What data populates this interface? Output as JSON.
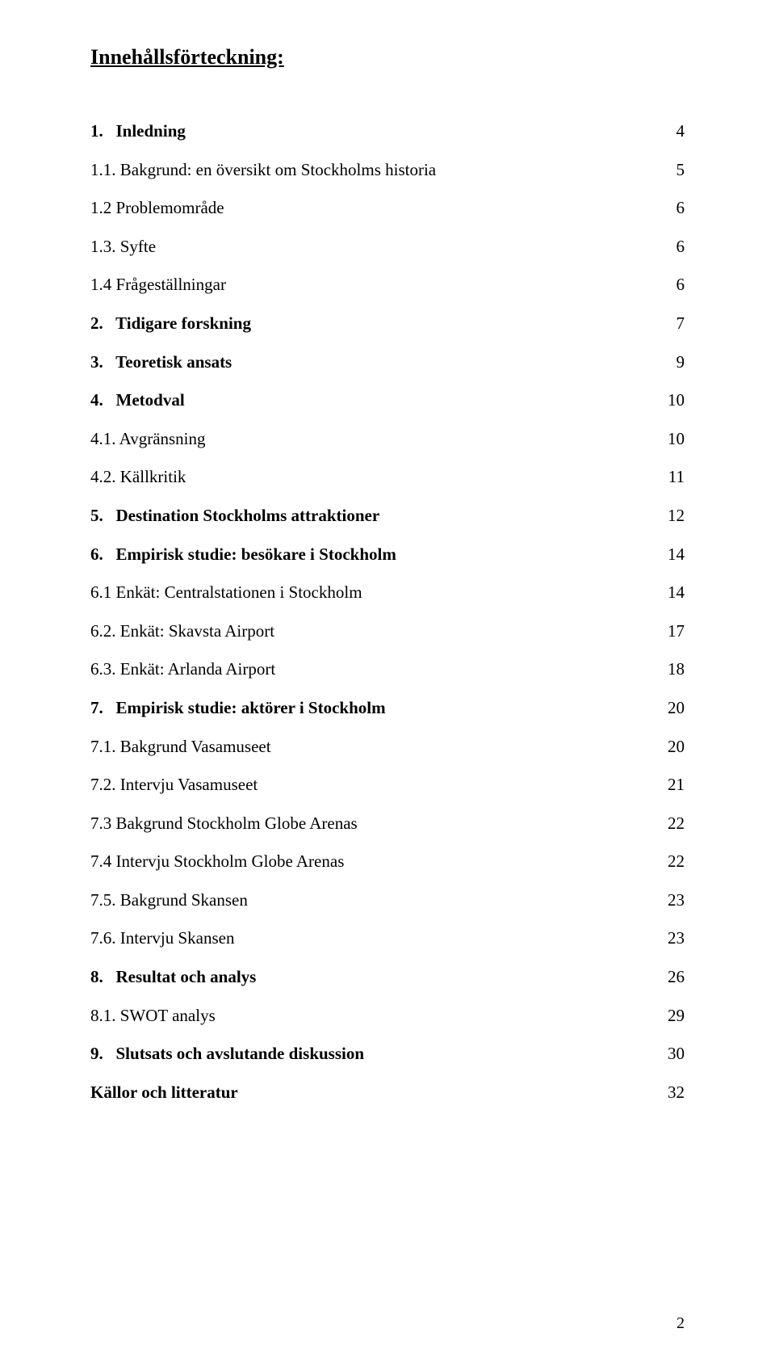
{
  "title": "Innehållsförteckning:",
  "entries": [
    {
      "label": "1.   Inledning",
      "page": "4",
      "bold": true
    },
    {
      "label": "1.1. Bakgrund: en översikt om Stockholms historia",
      "page": "5",
      "bold": false
    },
    {
      "label": "1.2 Problemområde",
      "page": "6",
      "bold": false
    },
    {
      "label": "1.3. Syfte",
      "page": "6",
      "bold": false
    },
    {
      "label": "1.4 Frågeställningar",
      "page": "6",
      "bold": false
    },
    {
      "label": "2.   Tidigare forskning",
      "page": "7",
      "bold": true
    },
    {
      "label": "3.   Teoretisk ansats",
      "page": "9",
      "bold": true
    },
    {
      "label": "4.   Metodval",
      "page": "10",
      "bold": true
    },
    {
      "label": "4.1. Avgränsning",
      "page": "10",
      "bold": false
    },
    {
      "label": "4.2. Källkritik",
      "page": "11",
      "bold": false
    },
    {
      "label": "5.   Destination Stockholms attraktioner",
      "page": "12",
      "bold": true
    },
    {
      "label": "6.   Empirisk studie: besökare i Stockholm",
      "page": "14",
      "bold": true
    },
    {
      "label": "6.1 Enkät: Centralstationen i Stockholm",
      "page": "14",
      "bold": false
    },
    {
      "label": "6.2. Enkät: Skavsta Airport",
      "page": "17",
      "bold": false
    },
    {
      "label": "6.3. Enkät: Arlanda Airport",
      "page": "18",
      "bold": false
    },
    {
      "label": "7.   Empirisk studie: aktörer i Stockholm",
      "page": "20",
      "bold": true
    },
    {
      "label": "7.1. Bakgrund Vasamuseet",
      "page": "20",
      "bold": false
    },
    {
      "label": "7.2. Intervju Vasamuseet",
      "page": "21",
      "bold": false
    },
    {
      "label": "7.3 Bakgrund Stockholm Globe Arenas",
      "page": "22",
      "bold": false
    },
    {
      "label": "7.4 Intervju Stockholm Globe Arenas",
      "page": "22",
      "bold": false
    },
    {
      "label": "7.5. Bakgrund Skansen",
      "page": "23",
      "bold": false
    },
    {
      "label": "7.6. Intervju Skansen",
      "page": "23",
      "bold": false
    },
    {
      "label": "8.   Resultat och analys",
      "page": "26",
      "bold": true
    },
    {
      "label": "8.1. SWOT analys",
      "page": "29",
      "bold": false
    },
    {
      "label": "9.   Slutsats och avslutande diskussion",
      "page": "30",
      "bold": true
    },
    {
      "label": "Källor och litteratur",
      "page": "32",
      "bold": true
    }
  ],
  "footer_page_number": "2",
  "colors": {
    "text": "#000000",
    "background": "#ffffff"
  },
  "typography": {
    "font_family": "Times New Roman",
    "title_fontsize_pt": 20,
    "body_fontsize_pt": 16
  }
}
